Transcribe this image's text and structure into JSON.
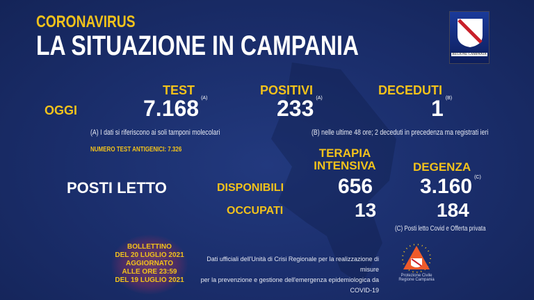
{
  "header": {
    "kicker": "CORONAVIRUS",
    "title": "LA SITUAZIONE IN CAMPANIA"
  },
  "logo": {
    "text": "REGIONE CAMPANIA"
  },
  "today": {
    "label": "OGGI",
    "test": {
      "label": "TEST",
      "value": "7.168",
      "note": "(A)"
    },
    "positivi": {
      "label": "POSITIVI",
      "value": "233",
      "note": "(A)"
    },
    "deceduti": {
      "label": "DECEDUTI",
      "value": "1",
      "note": "(B)"
    }
  },
  "notes": {
    "a": "(A) I dati si riferiscono ai soli tamponi molecolari",
    "b": "(B) nelle ultime 48 ore; 2 deceduti in precedenza ma registrati ieri",
    "antigen": "NUMERO TEST ANTIGENICI: 7.326",
    "c": "(C) Posti letto Covid e Offerta privata"
  },
  "beds": {
    "label": "POSTI LETTO",
    "ti_label": "TERAPIA INTENSIVA",
    "deg_label": "DEGENZA",
    "deg_note": "(C)",
    "disp_label": "DISPONIBILI",
    "occ_label": "OCCUPATI",
    "ti_disp": "656",
    "deg_disp": "3.160",
    "ti_occ": "13",
    "deg_occ": "184"
  },
  "bulletin": {
    "l1": "BOLLETTINO",
    "l2": "DEL 20 LUGLIO 2021",
    "l3": "AGGIORNATO",
    "l4": "ALLE ORE 23:59",
    "l5": "DEL 19 LUGLIO 2021"
  },
  "footer": {
    "l1": "Dati ufficiali dell'Unità di Crisi Regionale per la realizzazione di misure",
    "l2": "per la prevenzione e gestione dell'emergenza epidemiologica da COVID-19"
  },
  "pc": {
    "l1": "Protezione Civile",
    "l2": "Regione Campania"
  }
}
